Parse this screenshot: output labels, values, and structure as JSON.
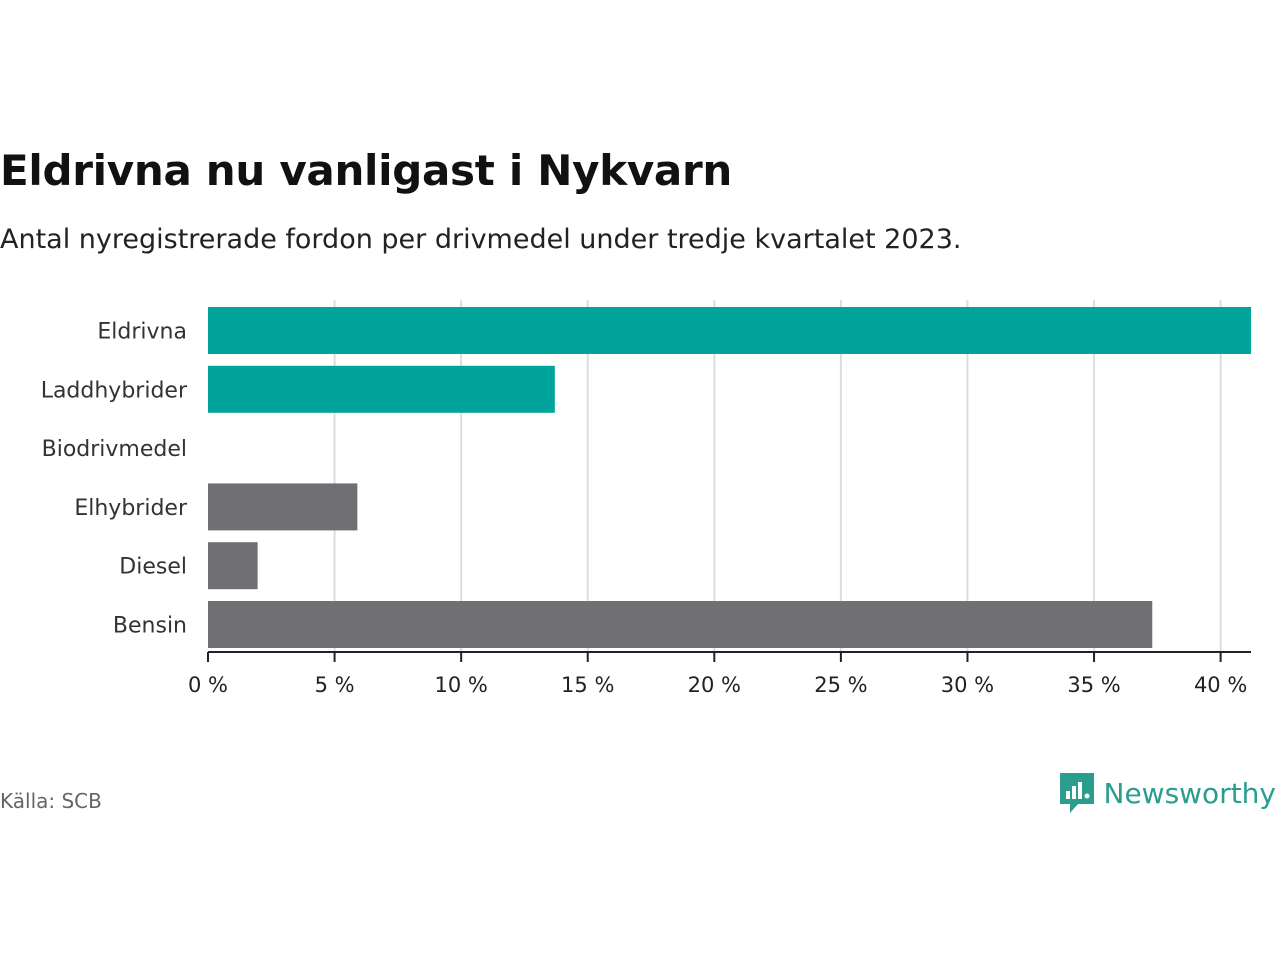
{
  "title": "Eldrivna nu vanligast i Nykvarn",
  "subtitle": "Antal nyregistrerade fordon per drivmedel under tredje kvartalet 2023.",
  "source": "Källa: SCB",
  "brand": "Newsworthy",
  "colors": {
    "highlight": "#00a49a",
    "other": "#706f74",
    "grid": "#dddddd",
    "brand": "#2a9d8f"
  },
  "chart_data": {
    "type": "bar",
    "orientation": "horizontal",
    "title": "Eldrivna nu vanligast i Nykvarn",
    "subtitle": "Antal nyregistrerade fordon per drivmedel under tredje kvartalet 2023.",
    "categories": [
      "Eldrivna",
      "Laddhybrider",
      "Biodrivmedel",
      "Elhybrider",
      "Diesel",
      "Bensin"
    ],
    "values": [
      41.2,
      13.7,
      0,
      5.9,
      1.96,
      37.3
    ],
    "highlight": [
      true,
      true,
      true,
      false,
      false,
      false
    ],
    "unit": "%",
    "xlim": [
      0,
      41.2
    ],
    "xticks": [
      0,
      5,
      10,
      15,
      20,
      25,
      30,
      35,
      40
    ],
    "xtick_labels": [
      "0 %",
      "5 %",
      "10 %",
      "15 %",
      "20 %",
      "25 %",
      "30 %",
      "35 %",
      "40 %"
    ],
    "grid": true
  }
}
